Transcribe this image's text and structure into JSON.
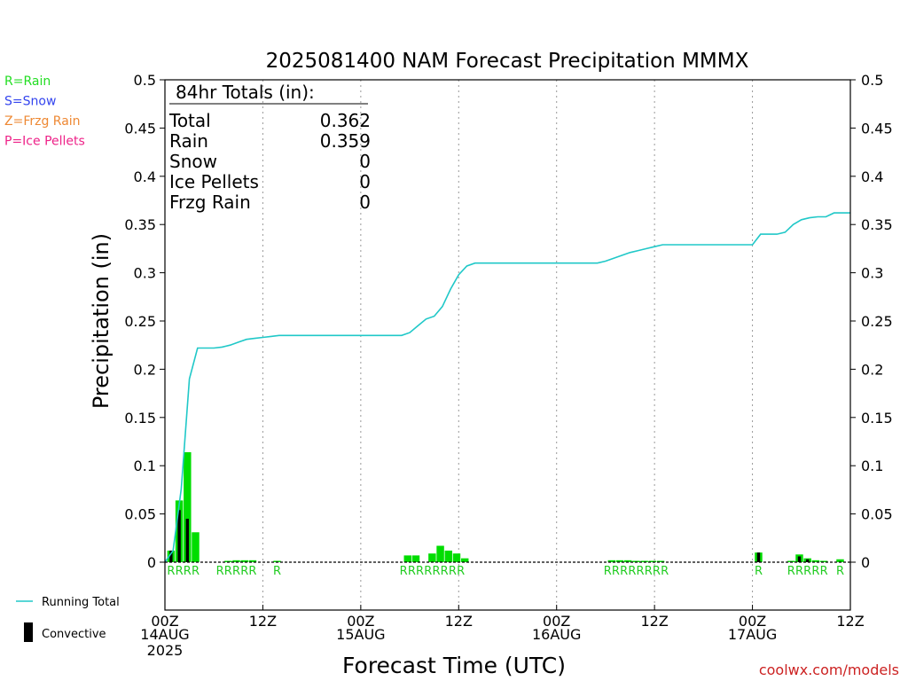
{
  "chart_data": {
    "type": "bar",
    "title": "2025081400 NAM Forecast Precipitation MMMX",
    "xlabel": "Forecast Time (UTC)",
    "ylabel": "Precipitation (in)",
    "ylim": [
      0,
      0.5
    ],
    "xlim_hours": [
      0,
      84
    ],
    "y_ticks": [
      "0",
      "0.05",
      "0.1",
      "0.15",
      "0.2",
      "0.25",
      "0.3",
      "0.35",
      "0.4",
      "0.45",
      "0.5"
    ],
    "x_ticks": [
      {
        "hour": 0,
        "label": "00Z",
        "sub": "14AUG",
        "sub2": "2025"
      },
      {
        "hour": 12,
        "label": "12Z",
        "sub": "",
        "sub2": ""
      },
      {
        "hour": 24,
        "label": "00Z",
        "sub": "15AUG",
        "sub2": ""
      },
      {
        "hour": 36,
        "label": "12Z",
        "sub": "",
        "sub2": ""
      },
      {
        "hour": 48,
        "label": "00Z",
        "sub": "16AUG",
        "sub2": ""
      },
      {
        "hour": 60,
        "label": "12Z",
        "sub": "",
        "sub2": ""
      },
      {
        "hour": 72,
        "label": "00Z",
        "sub": "17AUG",
        "sub2": ""
      },
      {
        "hour": 84,
        "label": "12Z",
        "sub": "",
        "sub2": ""
      }
    ],
    "grid": "vertical dotted",
    "precip_bars": [
      {
        "hour": 0.75,
        "total": 0.012,
        "convective": 0.012
      },
      {
        "hour": 1.75,
        "total": 0.064,
        "convective": 0.054
      },
      {
        "hour": 2.75,
        "total": 0.114,
        "convective": 0.045
      },
      {
        "hour": 3.75,
        "total": 0.031,
        "convective": 0.0
      },
      {
        "hour": 7.75,
        "total": 0.001,
        "convective": 0.0
      },
      {
        "hour": 8.75,
        "total": 0.002,
        "convective": 0.0
      },
      {
        "hour": 9.75,
        "total": 0.002,
        "convective": 0.0
      },
      {
        "hour": 10.75,
        "total": 0.002,
        "convective": 0.0
      },
      {
        "hour": 13.75,
        "total": 0.001,
        "convective": 0.0
      },
      {
        "hour": 29.75,
        "total": 0.007,
        "convective": 0.0
      },
      {
        "hour": 30.75,
        "total": 0.007,
        "convective": 0.0
      },
      {
        "hour": 32.75,
        "total": 0.009,
        "convective": 0.0
      },
      {
        "hour": 33.75,
        "total": 0.017,
        "convective": 0.0
      },
      {
        "hour": 34.75,
        "total": 0.012,
        "convective": 0.0
      },
      {
        "hour": 35.75,
        "total": 0.009,
        "convective": 0.0
      },
      {
        "hour": 36.75,
        "total": 0.004,
        "convective": 0.0
      },
      {
        "hour": 54.75,
        "total": 0.002,
        "convective": 0.0
      },
      {
        "hour": 55.75,
        "total": 0.002,
        "convective": 0.0
      },
      {
        "hour": 56.75,
        "total": 0.002,
        "convective": 0.0
      },
      {
        "hour": 57.75,
        "total": 0.001,
        "convective": 0.0
      },
      {
        "hour": 58.75,
        "total": 0.001,
        "convective": 0.0
      },
      {
        "hour": 59.75,
        "total": 0.001,
        "convective": 0.0
      },
      {
        "hour": 60.75,
        "total": 0.001,
        "convective": 0.0
      },
      {
        "hour": 72.75,
        "total": 0.01,
        "convective": 0.01
      },
      {
        "hour": 76.75,
        "total": 0.001,
        "convective": 0.0
      },
      {
        "hour": 77.75,
        "total": 0.008,
        "convective": 0.006
      },
      {
        "hour": 78.75,
        "total": 0.004,
        "convective": 0.003
      },
      {
        "hour": 79.75,
        "total": 0.002,
        "convective": 0.0
      },
      {
        "hour": 80.75,
        "total": 0.001,
        "convective": 0.0
      },
      {
        "hour": 82.75,
        "total": 0.003,
        "convective": 0.0
      }
    ],
    "running_total": [
      [
        0,
        0.0
      ],
      [
        1,
        0.012
      ],
      [
        2,
        0.076
      ],
      [
        3,
        0.19
      ],
      [
        4,
        0.222
      ],
      [
        5,
        0.222
      ],
      [
        6,
        0.222
      ],
      [
        7,
        0.223
      ],
      [
        8,
        0.225
      ],
      [
        9,
        0.228
      ],
      [
        10,
        0.231
      ],
      [
        11,
        0.232
      ],
      [
        12,
        0.233
      ],
      [
        13,
        0.234
      ],
      [
        14,
        0.235
      ],
      [
        24,
        0.235
      ],
      [
        29,
        0.235
      ],
      [
        30,
        0.238
      ],
      [
        31,
        0.245
      ],
      [
        32,
        0.252
      ],
      [
        33,
        0.255
      ],
      [
        34,
        0.265
      ],
      [
        35,
        0.283
      ],
      [
        36,
        0.298
      ],
      [
        37,
        0.307
      ],
      [
        38,
        0.31
      ],
      [
        53,
        0.31
      ],
      [
        54,
        0.312
      ],
      [
        55,
        0.315
      ],
      [
        56,
        0.318
      ],
      [
        57,
        0.321
      ],
      [
        58,
        0.323
      ],
      [
        59,
        0.325
      ],
      [
        60,
        0.327
      ],
      [
        61,
        0.329
      ],
      [
        62,
        0.329
      ],
      [
        72,
        0.329
      ],
      [
        73,
        0.34
      ],
      [
        74,
        0.34
      ],
      [
        75,
        0.34
      ],
      [
        76,
        0.342
      ],
      [
        77,
        0.35
      ],
      [
        78,
        0.355
      ],
      [
        79,
        0.357
      ],
      [
        80,
        0.358
      ],
      [
        81,
        0.358
      ],
      [
        82,
        0.362
      ],
      [
        84,
        0.362
      ]
    ],
    "precip_type_labels": [
      {
        "hour": 0.75,
        "type": "R"
      },
      {
        "hour": 1.75,
        "type": "R"
      },
      {
        "hour": 2.75,
        "type": "R"
      },
      {
        "hour": 3.75,
        "type": "R"
      },
      {
        "hour": 6.75,
        "type": "R"
      },
      {
        "hour": 7.75,
        "type": "R"
      },
      {
        "hour": 8.75,
        "type": "R"
      },
      {
        "hour": 9.75,
        "type": "R"
      },
      {
        "hour": 10.75,
        "type": "R"
      },
      {
        "hour": 13.75,
        "type": "R"
      },
      {
        "hour": 29.25,
        "type": "R"
      },
      {
        "hour": 30.25,
        "type": "R"
      },
      {
        "hour": 31.25,
        "type": "R"
      },
      {
        "hour": 32.25,
        "type": "R"
      },
      {
        "hour": 33.25,
        "type": "R"
      },
      {
        "hour": 34.25,
        "type": "R"
      },
      {
        "hour": 35.25,
        "type": "R"
      },
      {
        "hour": 36.25,
        "type": "R"
      },
      {
        "hour": 54.25,
        "type": "R"
      },
      {
        "hour": 55.25,
        "type": "R"
      },
      {
        "hour": 56.25,
        "type": "R"
      },
      {
        "hour": 57.25,
        "type": "R"
      },
      {
        "hour": 58.25,
        "type": "R"
      },
      {
        "hour": 59.25,
        "type": "R"
      },
      {
        "hour": 60.25,
        "type": "R"
      },
      {
        "hour": 61.25,
        "type": "R"
      },
      {
        "hour": 72.75,
        "type": "R"
      },
      {
        "hour": 76.75,
        "type": "R"
      },
      {
        "hour": 77.75,
        "type": "R"
      },
      {
        "hour": 78.75,
        "type": "R"
      },
      {
        "hour": 79.75,
        "type": "R"
      },
      {
        "hour": 80.75,
        "type": "R"
      },
      {
        "hour": 82.75,
        "type": "R"
      }
    ],
    "totals_box": {
      "heading": "84hr Totals (in):",
      "rows": [
        {
          "label": "Total",
          "value": "0.362"
        },
        {
          "label": "Rain",
          "value": "0.359"
        },
        {
          "label": "Snow",
          "value": "0"
        },
        {
          "label": "Ice Pellets",
          "value": "0"
        },
        {
          "label": "Frzg Rain",
          "value": "0"
        }
      ]
    },
    "type_legend": [
      {
        "text": "R=Rain",
        "color": "#22dd22"
      },
      {
        "text": "S=Snow",
        "color": "#3344ee"
      },
      {
        "text": "Z=Frzg Rain",
        "color": "#ee8833"
      },
      {
        "text": "P=Ice Pellets",
        "color": "#ee2288"
      }
    ],
    "series_legend": [
      {
        "text": "Running Total",
        "kind": "line",
        "color": "#20c8c8"
      },
      {
        "text": "Convective",
        "kind": "bar",
        "color": "#000000"
      }
    ],
    "colors": {
      "rain_bar": "#00dd00",
      "convective_bar": "#000000",
      "running_total_line": "#20c8c8",
      "type_label": "#22cc22"
    },
    "credit": "coolwx.com/models"
  }
}
